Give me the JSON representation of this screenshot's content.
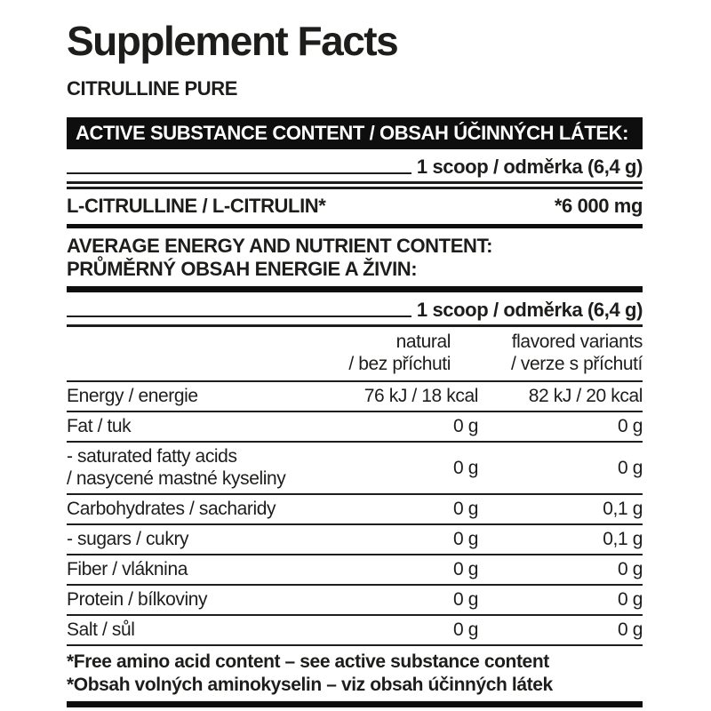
{
  "colors": {
    "text": "#1d1d1b",
    "bar_background": "#0e0e0e",
    "bar_text": "#ffffff",
    "background": "#ffffff"
  },
  "title": "Supplement Facts",
  "product_name": "CITRULLINE PURE",
  "active_substance": {
    "header": "ACTIVE SUBSTANCE CONTENT / OBSAH ÚČINNÝCH LÁTEK:",
    "serving": "1 scoop / odměrka (6,4 g)",
    "rows": [
      {
        "label": "L-CITRULLINE / L-CITRULIN*",
        "value": "*6 000 mg"
      }
    ]
  },
  "nutrition": {
    "header_line1": "AVERAGE ENERGY AND NUTRIENT CONTENT:",
    "header_line2": "PRŮMĚRNÝ OBSAH ENERGIE A ŽIVIN:",
    "serving": "1 scoop / odměrka (6,4 g)",
    "columns": [
      {
        "label": "natural\n/ bez příchuti"
      },
      {
        "label": "flavored variants\n/ verze s příchutí"
      }
    ],
    "rows": [
      {
        "label": "Energy / energie",
        "natural": "76 kJ / 18 kcal",
        "flavored": "82 kJ / 20 kcal"
      },
      {
        "label": "Fat / tuk",
        "natural": "0 g",
        "flavored": "0 g"
      },
      {
        "label": "- saturated fatty acids\n/ nasycené mastné kyseliny",
        "natural": "0 g",
        "flavored": "0 g"
      },
      {
        "label": "Carbohydrates / sacharidy",
        "natural": "0 g",
        "flavored": "0,1 g"
      },
      {
        "label": "- sugars / cukry",
        "natural": "0 g",
        "flavored": "0,1 g"
      },
      {
        "label": "Fiber / vláknina",
        "natural": "0 g",
        "flavored": "0 g"
      },
      {
        "label": "Protein / bílkoviny",
        "natural": "0 g",
        "flavored": "0 g"
      },
      {
        "label": "Salt / sůl",
        "natural": "0 g",
        "flavored": "0 g"
      }
    ]
  },
  "footnotes": [
    "*Free amino acid content – see active substance content",
    "*Obsah volných aminokyselin – viz obsah účinných látek"
  ]
}
